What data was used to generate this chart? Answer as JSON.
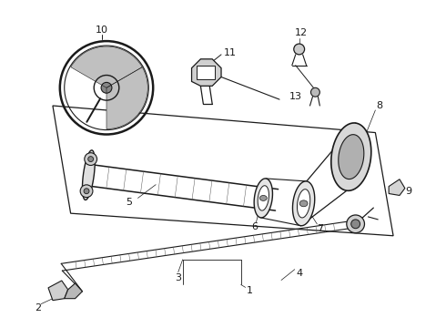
{
  "bg": "white",
  "lc": "#1a1a1a",
  "figsize": [
    4.9,
    3.6
  ],
  "dpi": 100
}
